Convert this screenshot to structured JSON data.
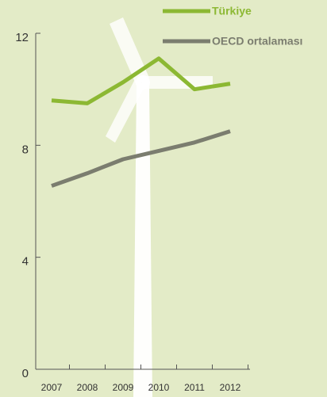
{
  "chart_data": {
    "type": "line",
    "categories": [
      "2007",
      "2008",
      "2009",
      "2010",
      "2011",
      "2012"
    ],
    "series": [
      {
        "name": "Türkiye",
        "color": "#8cb833",
        "values": [
          9.6,
          9.5,
          10.25,
          11.1,
          10.0,
          10.2
        ]
      },
      {
        "name": "OECD ortalaması",
        "color": "#7b7d6f",
        "values": [
          6.55,
          7.0,
          7.5,
          7.8,
          8.1,
          8.5
        ]
      }
    ],
    "ylim": [
      0,
      12
    ],
    "yticks": [
      0,
      4,
      8,
      12
    ]
  }
}
